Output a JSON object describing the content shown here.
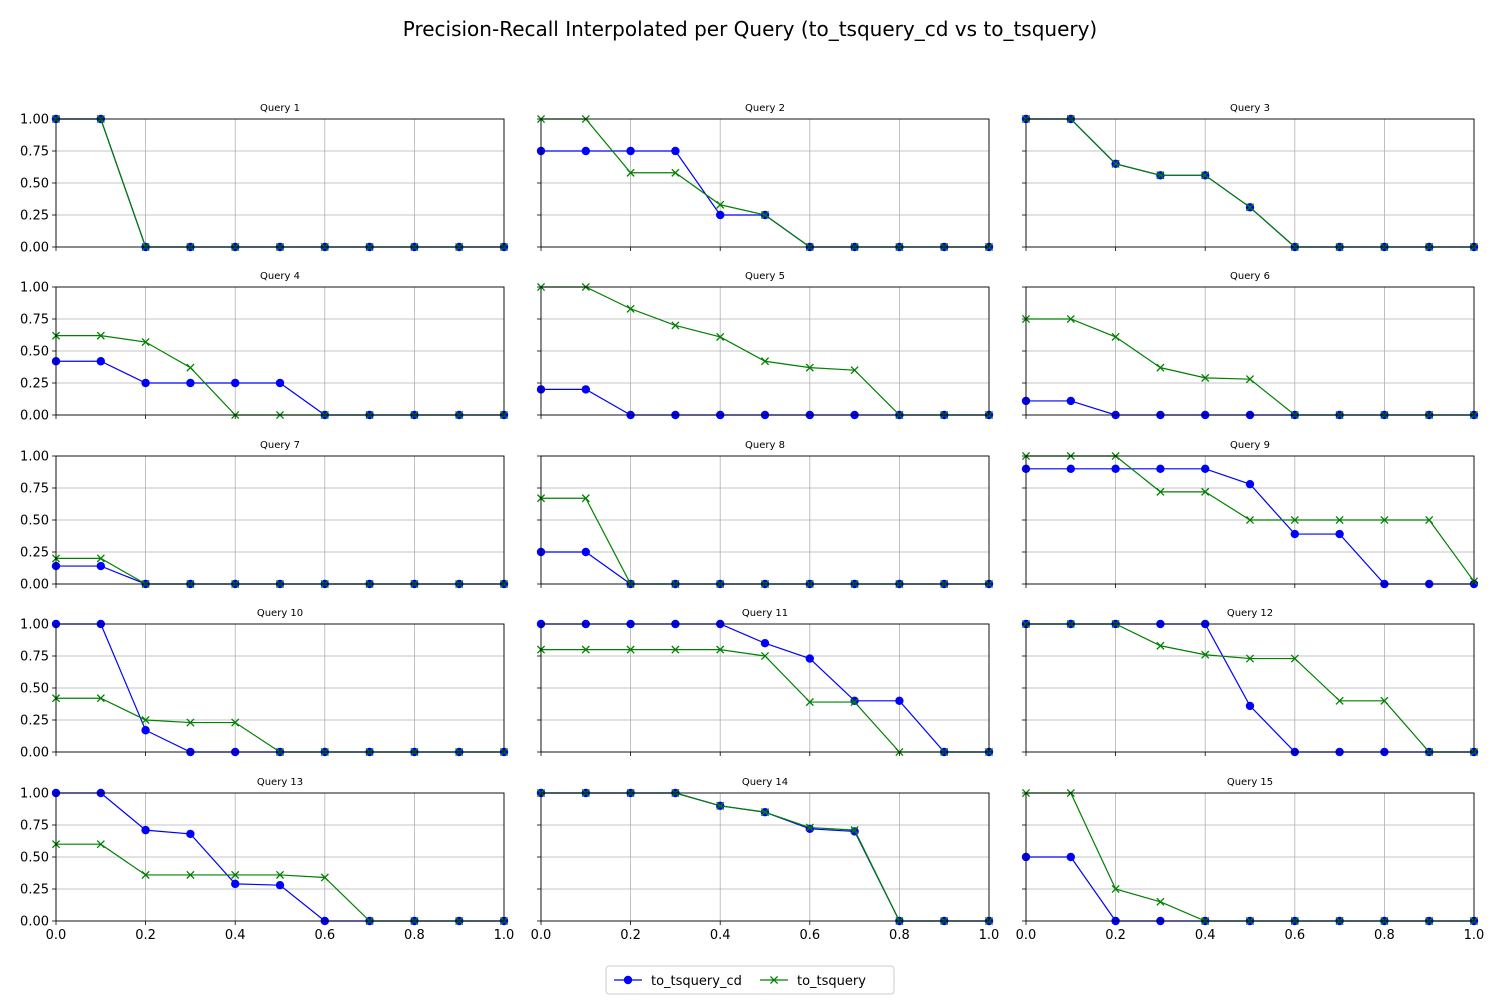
{
  "chart_data": {
    "type": "line",
    "title": "Precision-Recall Interpolated per Query (to_tsquery_cd vs to_tsquery)",
    "x": [
      0.0,
      0.1,
      0.2,
      0.3,
      0.4,
      0.5,
      0.6,
      0.7,
      0.8,
      0.9,
      1.0
    ],
    "xlim": [
      0.0,
      1.0
    ],
    "ylim": [
      0.0,
      1.0
    ],
    "xticks": [
      "0.0",
      "0.2",
      "0.4",
      "0.6",
      "0.8",
      "1.0"
    ],
    "yticks": [
      "0.00",
      "0.25",
      "0.50",
      "0.75",
      "1.00"
    ],
    "grid": true,
    "legend": {
      "placement": "bottom-center",
      "entries": [
        {
          "name": "to_tsquery_cd",
          "color": "#0000ff",
          "marker": "circle"
        },
        {
          "name": "to_tsquery",
          "color": "#008000",
          "marker": "x"
        }
      ]
    },
    "panels": [
      {
        "title": "Query 1",
        "series": [
          {
            "name": "to_tsquery_cd",
            "values": [
              1.0,
              1.0,
              0,
              0,
              0,
              0,
              0,
              0,
              0,
              0,
              0
            ]
          },
          {
            "name": "to_tsquery",
            "values": [
              1.0,
              1.0,
              0,
              0,
              0,
              0,
              0,
              0,
              0,
              0,
              0
            ]
          }
        ]
      },
      {
        "title": "Query 2",
        "series": [
          {
            "name": "to_tsquery_cd",
            "values": [
              0.75,
              0.75,
              0.75,
              0.75,
              0.25,
              0.25,
              0,
              0,
              0,
              0,
              0
            ]
          },
          {
            "name": "to_tsquery",
            "values": [
              1.0,
              1.0,
              0.58,
              0.58,
              0.33,
              0.25,
              0,
              0,
              0,
              0,
              0
            ]
          }
        ]
      },
      {
        "title": "Query 3",
        "series": [
          {
            "name": "to_tsquery_cd",
            "values": [
              1.0,
              1.0,
              0.65,
              0.56,
              0.56,
              0.31,
              0,
              0,
              0,
              0,
              0
            ]
          },
          {
            "name": "to_tsquery",
            "values": [
              1.0,
              1.0,
              0.65,
              0.56,
              0.56,
              0.31,
              0,
              0,
              0,
              0,
              0
            ]
          }
        ]
      },
      {
        "title": "Query 4",
        "series": [
          {
            "name": "to_tsquery_cd",
            "values": [
              0.42,
              0.42,
              0.25,
              0.25,
              0.25,
              0.25,
              0,
              0,
              0,
              0,
              0
            ]
          },
          {
            "name": "to_tsquery",
            "values": [
              0.62,
              0.62,
              0.57,
              0.37,
              0,
              0,
              0,
              0,
              0,
              0,
              0
            ]
          }
        ]
      },
      {
        "title": "Query 5",
        "series": [
          {
            "name": "to_tsquery_cd",
            "values": [
              0.2,
              0.2,
              0,
              0,
              0,
              0,
              0,
              0,
              0,
              0,
              0
            ]
          },
          {
            "name": "to_tsquery",
            "values": [
              1.0,
              1.0,
              0.83,
              0.7,
              0.61,
              0.42,
              0.37,
              0.35,
              0,
              0,
              0
            ]
          }
        ]
      },
      {
        "title": "Query 6",
        "series": [
          {
            "name": "to_tsquery_cd",
            "values": [
              0.11,
              0.11,
              0,
              0,
              0,
              0,
              0,
              0,
              0,
              0,
              0
            ]
          },
          {
            "name": "to_tsquery",
            "values": [
              0.75,
              0.75,
              0.61,
              0.37,
              0.29,
              0.28,
              0,
              0,
              0,
              0,
              0
            ]
          }
        ]
      },
      {
        "title": "Query 7",
        "series": [
          {
            "name": "to_tsquery_cd",
            "values": [
              0.14,
              0.14,
              0,
              0,
              0,
              0,
              0,
              0,
              0,
              0,
              0
            ]
          },
          {
            "name": "to_tsquery",
            "values": [
              0.2,
              0.2,
              0,
              0,
              0,
              0,
              0,
              0,
              0,
              0,
              0
            ]
          }
        ]
      },
      {
        "title": "Query 8",
        "series": [
          {
            "name": "to_tsquery_cd",
            "values": [
              0.25,
              0.25,
              0,
              0,
              0,
              0,
              0,
              0,
              0,
              0,
              0
            ]
          },
          {
            "name": "to_tsquery",
            "values": [
              0.67,
              0.67,
              0,
              0,
              0,
              0,
              0,
              0,
              0,
              0,
              0
            ]
          }
        ]
      },
      {
        "title": "Query 9",
        "series": [
          {
            "name": "to_tsquery_cd",
            "values": [
              0.9,
              0.9,
              0.9,
              0.9,
              0.9,
              0.78,
              0.39,
              0.39,
              0,
              0,
              0
            ]
          },
          {
            "name": "to_tsquery",
            "values": [
              1.0,
              1.0,
              1.0,
              0.72,
              0.72,
              0.5,
              0.5,
              0.5,
              0.5,
              0.5,
              0.02
            ]
          }
        ]
      },
      {
        "title": "Query 10",
        "series": [
          {
            "name": "to_tsquery_cd",
            "values": [
              1.0,
              1.0,
              0.17,
              0,
              0,
              0,
              0,
              0,
              0,
              0,
              0
            ]
          },
          {
            "name": "to_tsquery",
            "values": [
              0.42,
              0.42,
              0.25,
              0.23,
              0.23,
              0,
              0,
              0,
              0,
              0,
              0
            ]
          }
        ]
      },
      {
        "title": "Query 11",
        "series": [
          {
            "name": "to_tsquery_cd",
            "values": [
              1.0,
              1.0,
              1.0,
              1.0,
              1.0,
              0.85,
              0.73,
              0.4,
              0.4,
              0,
              0
            ]
          },
          {
            "name": "to_tsquery",
            "values": [
              0.8,
              0.8,
              0.8,
              0.8,
              0.8,
              0.75,
              0.39,
              0.39,
              0,
              0,
              0
            ]
          }
        ]
      },
      {
        "title": "Query 12",
        "series": [
          {
            "name": "to_tsquery_cd",
            "values": [
              1.0,
              1.0,
              1.0,
              1.0,
              1.0,
              0.36,
              0,
              0,
              0,
              0,
              0
            ]
          },
          {
            "name": "to_tsquery",
            "values": [
              1.0,
              1.0,
              1.0,
              0.83,
              0.76,
              0.73,
              0.73,
              0.4,
              0.4,
              0,
              0
            ]
          }
        ]
      },
      {
        "title": "Query 13",
        "series": [
          {
            "name": "to_tsquery_cd",
            "values": [
              1.0,
              1.0,
              0.71,
              0.68,
              0.29,
              0.28,
              0,
              0,
              0,
              0,
              0
            ]
          },
          {
            "name": "to_tsquery",
            "values": [
              0.6,
              0.6,
              0.36,
              0.36,
              0.36,
              0.36,
              0.34,
              0,
              0,
              0,
              0
            ]
          }
        ]
      },
      {
        "title": "Query 14",
        "series": [
          {
            "name": "to_tsquery_cd",
            "values": [
              1.0,
              1.0,
              1.0,
              1.0,
              0.9,
              0.85,
              0.72,
              0.7,
              0,
              0,
              0
            ]
          },
          {
            "name": "to_tsquery",
            "values": [
              1.0,
              1.0,
              1.0,
              1.0,
              0.9,
              0.85,
              0.73,
              0.71,
              0,
              0,
              0
            ]
          }
        ]
      },
      {
        "title": "Query 15",
        "series": [
          {
            "name": "to_tsquery_cd",
            "values": [
              0.5,
              0.5,
              0,
              0,
              0,
              0,
              0,
              0,
              0,
              0,
              0
            ]
          },
          {
            "name": "to_tsquery",
            "values": [
              1.0,
              1.0,
              0.25,
              0.15,
              0,
              0,
              0,
              0,
              0,
              0,
              0
            ]
          }
        ]
      }
    ]
  }
}
